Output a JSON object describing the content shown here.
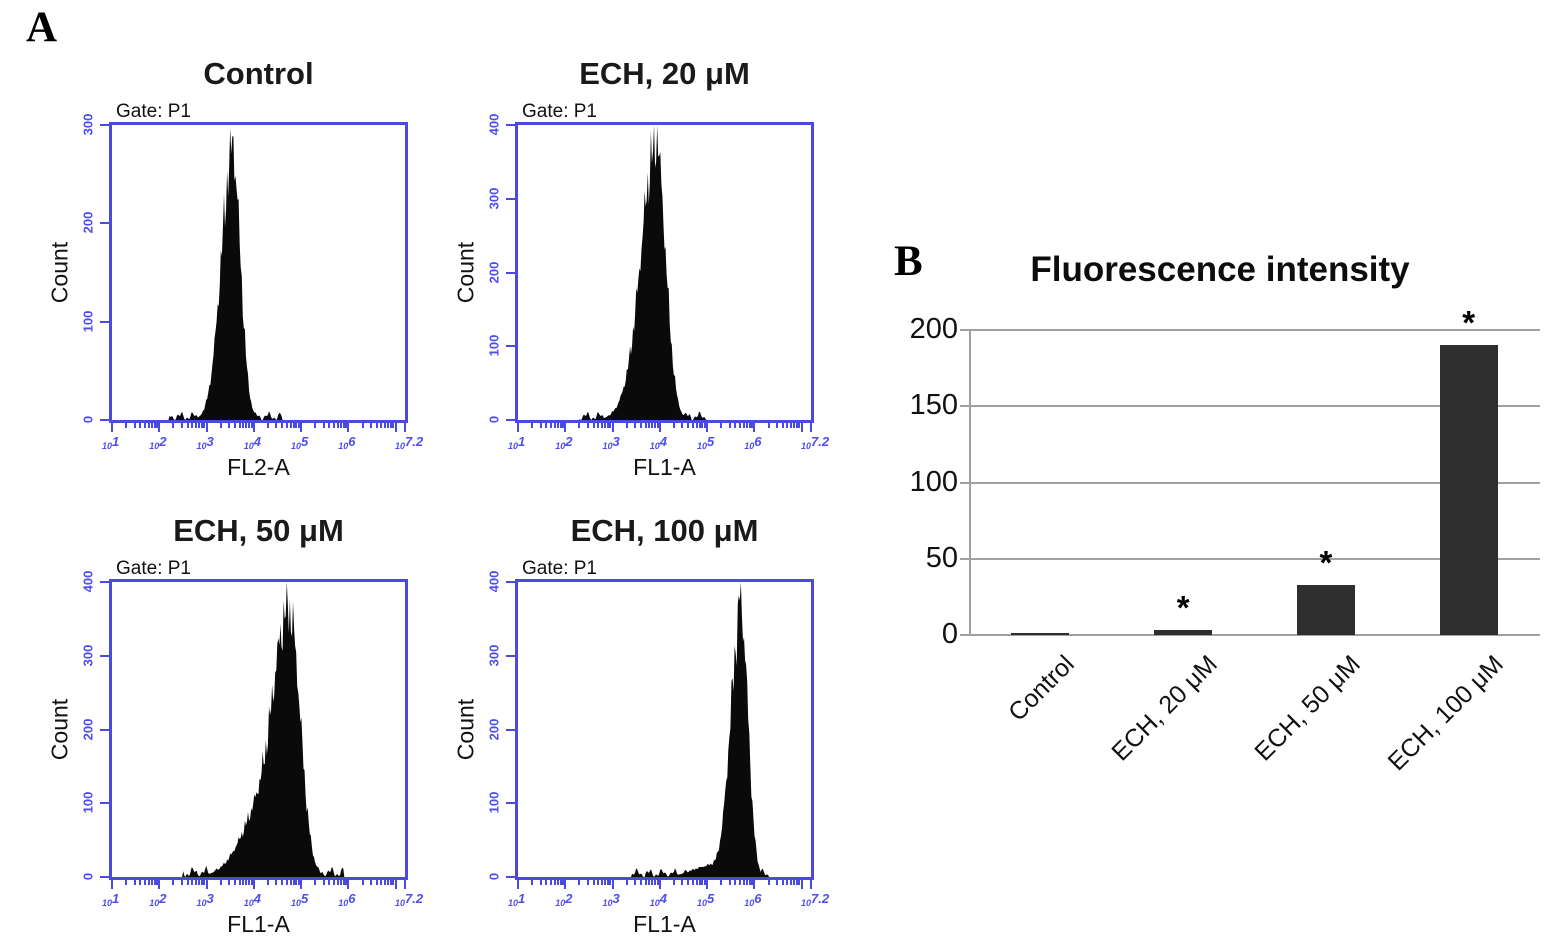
{
  "figure": {
    "panel_a_label": "A",
    "panel_b_label": "B",
    "log_base": "10"
  },
  "colors": {
    "axis_blue": "#4a4ae0",
    "tick_blue": "#4d4df0",
    "histogram_fill": "#0a0a0a",
    "bar_fill": "#2e2e2e",
    "grid_gray": "#a0a0a0",
    "text_black": "#111111"
  },
  "chart_data": [
    {
      "type": "area",
      "subtype": "flow-cytometry-histogram",
      "panel": "A",
      "title": "Control",
      "gate": "Gate: P1",
      "xlabel": "FL2-A",
      "ylabel": "Count",
      "x_scale": "log10",
      "x_range": [
        1,
        7.2
      ],
      "x_tick_exponents": [
        "1",
        "2",
        "3",
        "4",
        "5",
        "6",
        "7.2"
      ],
      "y_range": [
        0,
        300
      ],
      "y_ticks": [
        0,
        100,
        200,
        300
      ],
      "peak": {
        "x_log10": 3.55,
        "count": 276
      },
      "shape": {
        "components": [
          {
            "c": 3.55,
            "sl": 0.24,
            "sr": 0.17,
            "a": 0.9
          },
          {
            "c": 3.56,
            "sl": 0.02,
            "sr": 0.015,
            "a": 0.07
          }
        ],
        "floor": {
          "from": 2.2,
          "to": 4.6,
          "a": 0.012
        }
      }
    },
    {
      "type": "area",
      "subtype": "flow-cytometry-histogram",
      "panel": "A",
      "title": "ECH, 20 μM",
      "gate": "Gate: P1",
      "xlabel": "FL1-A",
      "ylabel": "Count",
      "x_scale": "log10",
      "x_range": [
        1,
        7.2
      ],
      "x_tick_exponents": [
        "1",
        "2",
        "3",
        "4",
        "5",
        "6",
        "7.2"
      ],
      "y_range": [
        0,
        400
      ],
      "y_ticks": [
        0,
        100,
        200,
        300,
        400
      ],
      "peak": {
        "x_log10": 3.93,
        "count": 389
      },
      "shape": {
        "components": [
          {
            "c": 3.93,
            "sl": 0.28,
            "sr": 0.2,
            "a": 0.9
          },
          {
            "c": 3.55,
            "sl": 0.3,
            "sr": 0.2,
            "a": 0.12
          },
          {
            "c": 3.95,
            "sl": 0.025,
            "sr": 0.02,
            "a": 0.06
          }
        ],
        "floor": {
          "from": 2.3,
          "to": 5.0,
          "a": 0.012
        }
      }
    },
    {
      "type": "area",
      "subtype": "flow-cytometry-histogram",
      "panel": "A",
      "title": "ECH, 50 μM",
      "gate": "Gate: P1",
      "xlabel": "FL1-A",
      "ylabel": "Count",
      "x_scale": "log10",
      "x_range": [
        1,
        7.2
      ],
      "x_tick_exponents": [
        "1",
        "2",
        "3",
        "4",
        "5",
        "6",
        "7.2"
      ],
      "y_range": [
        0,
        400
      ],
      "y_ticks": [
        0,
        100,
        200,
        300,
        400
      ],
      "peak": {
        "x_log10": 4.78,
        "count": 361
      },
      "shape": {
        "components": [
          {
            "c": 4.78,
            "sl": 0.28,
            "sr": 0.22,
            "a": 0.82
          },
          {
            "c": 4.35,
            "sl": 0.5,
            "sr": 0.25,
            "a": 0.3
          },
          {
            "c": 4.72,
            "sl": 0.03,
            "sr": 0.02,
            "a": 0.04
          }
        ],
        "floor": {
          "from": 2.5,
          "to": 5.9,
          "a": 0.015
        }
      }
    },
    {
      "type": "area",
      "subtype": "flow-cytometry-histogram",
      "panel": "A",
      "title": "ECH, 100 μM",
      "gate": "Gate: P1",
      "xlabel": "FL1-A",
      "ylabel": "Count",
      "x_scale": "log10",
      "x_range": [
        1,
        7.2
      ],
      "x_tick_exponents": [
        "1",
        "2",
        "3",
        "4",
        "5",
        "6",
        "7.2"
      ],
      "y_range": [
        0,
        400
      ],
      "y_ticks": [
        0,
        100,
        200,
        300,
        400
      ],
      "peak": {
        "x_log10": 5.72,
        "count": 388
      },
      "shape": {
        "components": [
          {
            "c": 5.72,
            "sl": 0.22,
            "sr": 0.15,
            "a": 0.9
          },
          {
            "c": 5.0,
            "sl": 0.35,
            "sr": 0.15,
            "a": 0.035
          },
          {
            "c": 5.7,
            "sl": 0.02,
            "sr": 0.015,
            "a": 0.07
          }
        ],
        "floor": {
          "from": 3.4,
          "to": 6.35,
          "a": 0.012
        }
      }
    },
    {
      "type": "bar",
      "panel": "B",
      "title": "Fluorescence intensity",
      "categories": [
        "Control",
        "ECH, 20 μM",
        "ECH, 50 μM",
        "ECH, 100 μM"
      ],
      "values": [
        1,
        3,
        33,
        190
      ],
      "significance": [
        "",
        "*",
        "*",
        "*"
      ],
      "ylim": [
        0,
        200
      ],
      "y_ticks": [
        0,
        50,
        100,
        150,
        200
      ],
      "grid": true,
      "legend": false
    }
  ]
}
